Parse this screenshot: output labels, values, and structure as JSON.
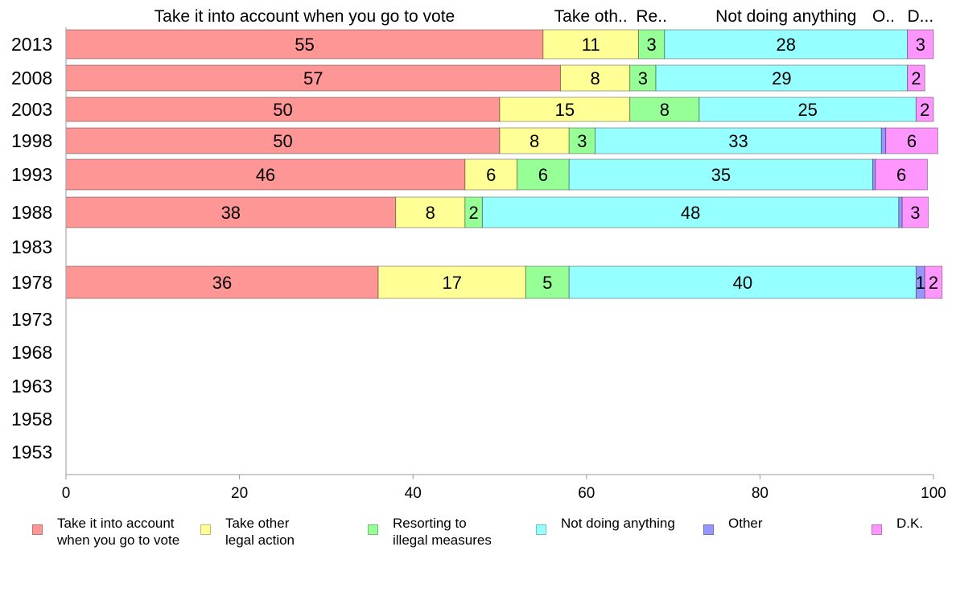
{
  "chart_data": {
    "type": "bar",
    "orientation": "horizontal",
    "stacked": true,
    "categories": [
      "2013",
      "2008",
      "2003",
      "1998",
      "1993",
      "1988",
      "1983",
      "1978",
      "1973",
      "1968",
      "1963",
      "1958",
      "1953"
    ],
    "series": [
      {
        "name": "Take it into account when you go to vote",
        "legend_label": "Take it into account\nwhen you go to vote",
        "top_label": "Take it into account when you go to vote",
        "color": "#ff9696",
        "values": [
          55,
          57,
          50,
          50,
          46,
          38,
          null,
          36,
          null,
          null,
          null,
          null,
          null
        ]
      },
      {
        "name": "Take other legal action",
        "legend_label": "Take other\nlegal action",
        "top_label": "Take oth..",
        "color": "#ffff96",
        "values": [
          11,
          8,
          15,
          8,
          6,
          8,
          null,
          17,
          null,
          null,
          null,
          null,
          null
        ]
      },
      {
        "name": "Resorting to illegal measures",
        "legend_label": "Resorting to\nillegal measures",
        "top_label": "Re..",
        "color": "#96ff96",
        "values": [
          3,
          3,
          8,
          3,
          6,
          2,
          null,
          5,
          null,
          null,
          null,
          null,
          null
        ]
      },
      {
        "name": "Not doing anything",
        "legend_label": "Not doing anything",
        "top_label": "Not doing anything",
        "color": "#96ffff",
        "values": [
          28,
          29,
          25,
          33,
          35,
          48,
          null,
          40,
          null,
          null,
          null,
          null,
          null
        ]
      },
      {
        "name": "Other",
        "legend_label": "Other",
        "top_label": "O..",
        "color": "#9696ff",
        "values": [
          0,
          0,
          0,
          0.5,
          0.3,
          0.4,
          null,
          1,
          null,
          null,
          null,
          null,
          null
        ]
      },
      {
        "name": "D.K.",
        "legend_label": "D.K.",
        "top_label": "D...",
        "color": "#ff96ff",
        "values": [
          3,
          2,
          2,
          6,
          6,
          3,
          null,
          2,
          null,
          null,
          null,
          null,
          null
        ]
      }
    ],
    "data_labels": [
      [
        "55",
        "11",
        "3",
        "28",
        "",
        "3"
      ],
      [
        "57",
        "8",
        "3",
        "29",
        "",
        "2"
      ],
      [
        "50",
        "15",
        "8",
        "25",
        "",
        "2"
      ],
      [
        "50",
        "8",
        "3",
        "33",
        "",
        "6"
      ],
      [
        "46",
        "6",
        "6",
        "35",
        "",
        "6"
      ],
      [
        "38",
        "8",
        "2",
        "48",
        "",
        "3"
      ],
      [
        "",
        "",
        "",
        "",
        "",
        ""
      ],
      [
        "36",
        "17",
        "5",
        "40",
        "1",
        "2"
      ],
      [
        "",
        "",
        "",
        "",
        "",
        ""
      ],
      [
        "",
        "",
        "",
        "",
        "",
        ""
      ],
      [
        "",
        "",
        "",
        "",
        "",
        ""
      ],
      [
        "",
        "",
        "",
        "",
        "",
        ""
      ],
      [
        "",
        "",
        "",
        "",
        "",
        ""
      ]
    ],
    "xlim": [
      0,
      100
    ],
    "xticks": [
      0,
      20,
      40,
      60,
      80,
      100
    ],
    "xlabel": "",
    "ylabel": "",
    "title": "",
    "grid": false,
    "legend_position": "bottom"
  }
}
